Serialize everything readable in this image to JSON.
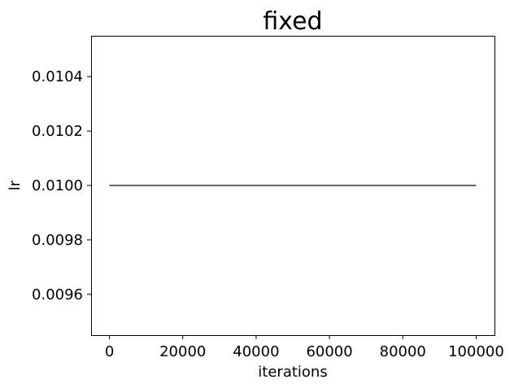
{
  "chart_data": {
    "type": "line",
    "title": "fixed",
    "xlabel": "iterations",
    "ylabel": "lr",
    "xlim": [
      -5000,
      105000
    ],
    "ylim": [
      0.00945,
      0.01055
    ],
    "x_ticks": [
      0,
      20000,
      40000,
      60000,
      80000,
      100000
    ],
    "x_tick_labels": [
      "0",
      "20000",
      "40000",
      "60000",
      "80000",
      "100000"
    ],
    "y_ticks": [
      0.0096,
      0.0098,
      0.01,
      0.0102,
      0.0104
    ],
    "y_tick_labels": [
      "0.0096",
      "0.0098",
      "0.0100",
      "0.0102",
      "0.0104"
    ],
    "grid": false,
    "series": [
      {
        "color": "#333333",
        "x": [
          0,
          100000
        ],
        "y": [
          0.01,
          0.01
        ]
      }
    ]
  }
}
